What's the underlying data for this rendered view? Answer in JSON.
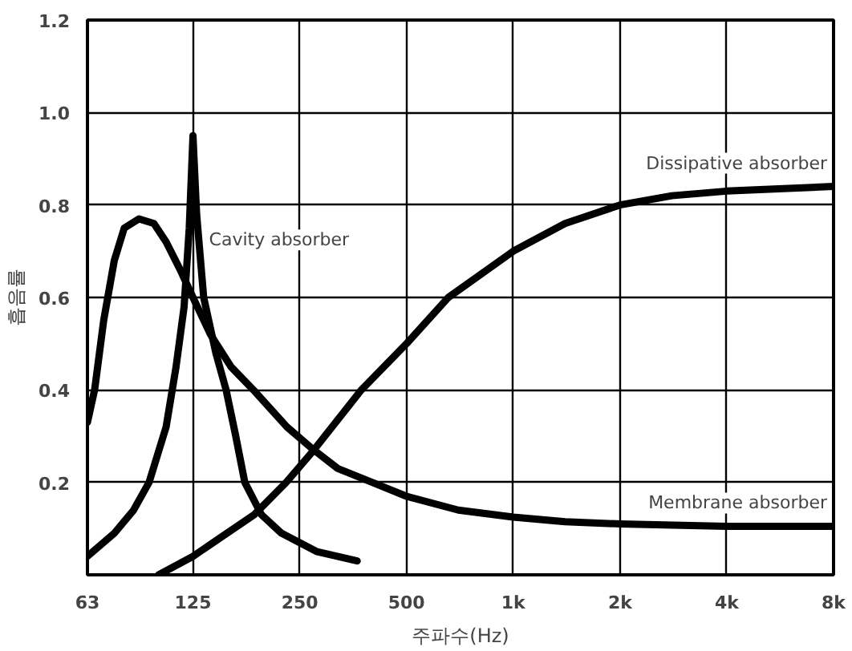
{
  "chart_data": {
    "type": "line",
    "xlabel": "주파수(Hz)",
    "ylabel": "흡음률",
    "log": "x",
    "xlim": [
      63,
      8000
    ],
    "ylim": [
      0,
      1.2
    ],
    "xticks": [
      63,
      125,
      250,
      500,
      {
        "value": 1000,
        "label": "1k"
      },
      {
        "value": 2000,
        "label": "2k"
      },
      {
        "value": 4000,
        "label": "4k"
      },
      {
        "value": 8000,
        "label": "8k"
      }
    ],
    "yticks": [
      0.2,
      0.4,
      0.6,
      0.8,
      {
        "value": 1.0,
        "label": "1.0"
      },
      1.2
    ],
    "grid": true,
    "marker": "none",
    "line_style": "solid",
    "series": [
      {
        "name": "Membrane absorber",
        "color": "#000000",
        "x": [
          63,
          66,
          70,
          75,
          80,
          88,
          97,
          105,
          115,
          125,
          140,
          160,
          185,
          230,
          274,
          320,
          400,
          500,
          700,
          1000,
          1400,
          2000,
          4000,
          8000
        ],
        "values": [
          0.33,
          0.4,
          0.55,
          0.68,
          0.75,
          0.77,
          0.76,
          0.72,
          0.66,
          0.6,
          0.52,
          0.45,
          0.4,
          0.32,
          0.27,
          0.23,
          0.2,
          0.17,
          0.14,
          0.125,
          0.115,
          0.11,
          0.105,
          0.105
        ]
      },
      {
        "name": "Cavity absorber",
        "color": "#000000",
        "x": [
          63,
          75,
          85,
          94,
          105,
          112,
          118,
          122,
          125,
          128,
          134,
          145,
          155,
          165,
          175,
          195,
          222,
          280,
          363
        ],
        "values": [
          0.04,
          0.09,
          0.14,
          0.2,
          0.32,
          0.45,
          0.58,
          0.75,
          0.95,
          0.78,
          0.6,
          0.48,
          0.4,
          0.3,
          0.2,
          0.13,
          0.09,
          0.05,
          0.03
        ]
      },
      {
        "name": "Dissipative absorber",
        "color": "#000000",
        "x": [
          100,
          125,
          186,
          229,
          274,
          373,
          500,
          656,
          1000,
          1400,
          2000,
          2800,
          4000,
          8000
        ],
        "values": [
          0,
          0.04,
          0.13,
          0.2,
          0.27,
          0.4,
          0.5,
          0.6,
          0.7,
          0.76,
          0.8,
          0.82,
          0.83,
          0.84
        ]
      }
    ]
  }
}
